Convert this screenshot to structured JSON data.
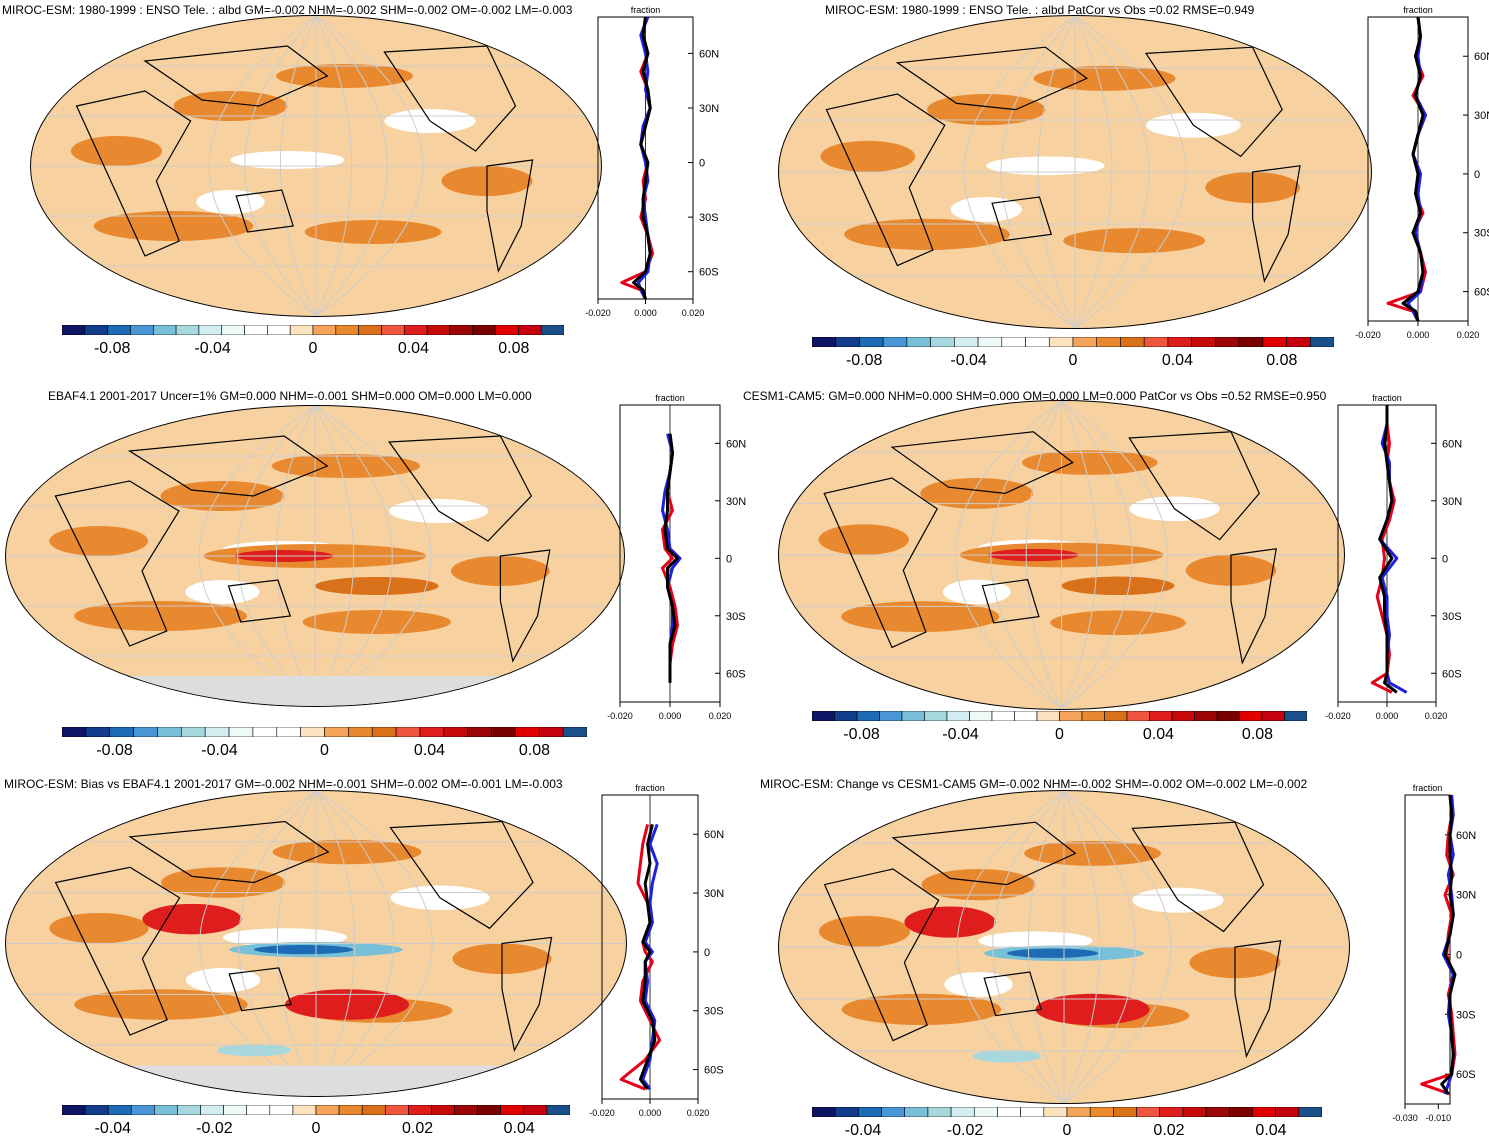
{
  "chart_data": [
    {
      "type": "heatmap",
      "title": "MIROC-ESM: 1980-1999 : ENSO Tele. : albd GM=-0.002 NHM=-0.002 SHM=-0.002 OM=-0.002 LM=-0.003",
      "colorbar": {
        "ticks": [
          "-0.08",
          "-0.04",
          "0",
          "0.04",
          "0.08"
        ],
        "range": [
          -0.1,
          0.1
        ]
      },
      "zonal_mean": {
        "label": "fraction",
        "x_ticks": [
          "-0.020",
          "0.000",
          "0.020"
        ],
        "y_ticks": [
          "60N",
          "30N",
          "0",
          "30S",
          "60S"
        ],
        "series": [
          {
            "color": "#e8001a",
            "lat": [
              80,
              70,
              60,
              50,
              40,
              30,
              20,
              10,
              0,
              -10,
              -20,
              -30,
              -40,
              -50,
              -60,
              -66,
              -70,
              -75
            ],
            "values": [
              0.0,
              -0.001,
              0.001,
              -0.002,
              0.001,
              0.002,
              0.0,
              -0.002,
              0.001,
              -0.001,
              0.0,
              -0.002,
              0.001,
              0.003,
              0.0,
              -0.01,
              -0.002,
              0.0
            ]
          },
          {
            "color": "#1f1fe0",
            "lat": [
              80,
              70,
              60,
              50,
              40,
              30,
              20,
              10,
              0,
              -10,
              -20,
              -30,
              -40,
              -50,
              -60,
              -66,
              -70,
              -75
            ],
            "values": [
              0.001,
              -0.002,
              0.0,
              0.001,
              0.0,
              0.002,
              -0.001,
              -0.002,
              0.0,
              0.001,
              -0.001,
              0.0,
              0.001,
              0.002,
              0.001,
              -0.003,
              -0.002,
              0.0
            ]
          },
          {
            "color": "#000000",
            "lat": [
              80,
              70,
              60,
              50,
              40,
              30,
              20,
              10,
              0,
              -10,
              -20,
              -30,
              -40,
              -50,
              -60,
              -66,
              -70,
              -75
            ],
            "values": [
              0.0,
              -0.001,
              0.001,
              -0.001,
              0.001,
              0.002,
              0.0,
              -0.002,
              0.001,
              0.0,
              -0.001,
              -0.001,
              0.001,
              0.002,
              0.0,
              -0.005,
              -0.001,
              0.0
            ]
          }
        ]
      }
    },
    {
      "type": "heatmap",
      "title": "MIROC-ESM: 1980-1999 : ENSO Tele. : albd PatCor vs Obs =0.02 RMSE=0.949",
      "colorbar": {
        "ticks": [
          "-0.08",
          "-0.04",
          "0",
          "0.04",
          "0.08"
        ],
        "range": [
          -0.1,
          0.1
        ]
      },
      "zonal_mean": {
        "label": "fraction",
        "x_ticks": [
          "-0.020",
          "0.000",
          "0.020"
        ],
        "y_ticks": [
          "60N",
          "30N",
          "0",
          "30S",
          "60S"
        ],
        "series": [
          {
            "color": "#e8001a",
            "lat": [
              80,
              70,
              60,
              50,
              40,
              30,
              20,
              10,
              0,
              -10,
              -20,
              -30,
              -40,
              -50,
              -60,
              -66,
              -70,
              -75
            ],
            "values": [
              0.0,
              0.001,
              -0.001,
              0.002,
              -0.002,
              0.003,
              0.0,
              -0.002,
              0.001,
              -0.001,
              0.002,
              -0.002,
              0.001,
              0.003,
              0.001,
              -0.012,
              -0.002,
              0.0
            ]
          },
          {
            "color": "#1f1fe0",
            "lat": [
              80,
              70,
              60,
              50,
              40,
              30,
              20,
              10,
              0,
              -10,
              -20,
              -30,
              -40,
              -50,
              -60,
              -66,
              -70,
              -75
            ],
            "values": [
              0.0,
              0.001,
              0.0,
              0.001,
              -0.001,
              0.003,
              0.0,
              -0.002,
              0.001,
              0.0,
              0.001,
              -0.001,
              0.001,
              0.002,
              0.001,
              -0.004,
              -0.002,
              0.0
            ]
          },
          {
            "color": "#000000",
            "lat": [
              80,
              70,
              60,
              50,
              40,
              30,
              20,
              10,
              0,
              -10,
              -20,
              -30,
              -40,
              -50,
              -60,
              -66,
              -70,
              -75
            ],
            "values": [
              0.0,
              0.001,
              -0.001,
              0.001,
              -0.001,
              0.002,
              0.0,
              -0.002,
              0.0,
              -0.001,
              0.001,
              -0.002,
              0.001,
              0.002,
              0.0,
              -0.006,
              -0.001,
              0.0
            ]
          }
        ]
      }
    },
    {
      "type": "heatmap",
      "title": "EBAF4.1 2001-2017 Uncer=1% GM=0.000 NHM=-0.001 SHM=0.000 OM=0.000 LM=0.000",
      "colorbar": {
        "ticks": [
          "-0.08",
          "-0.04",
          "0",
          "0.04",
          "0.08"
        ],
        "range": [
          -0.1,
          0.1
        ]
      },
      "zonal_mean": {
        "label": "fraction",
        "x_ticks": [
          "-0.020",
          "0.000",
          "0.020"
        ],
        "y_ticks": [
          "60N",
          "30N",
          "0",
          "30S",
          "60S"
        ],
        "series": [
          {
            "color": "#e8001a",
            "lat": [
              65,
              55,
              45,
              35,
              25,
              15,
              5,
              0,
              -5,
              -15,
              -25,
              -35,
              -45,
              -55,
              -65
            ],
            "values": [
              0.0,
              0.001,
              0.0,
              -0.001,
              0.001,
              -0.003,
              -0.002,
              0.001,
              -0.003,
              0.0,
              0.002,
              0.003,
              0.001,
              0.0,
              0.0
            ]
          },
          {
            "color": "#1f1fe0",
            "lat": [
              65,
              55,
              45,
              35,
              25,
              15,
              5,
              0,
              -5,
              -15,
              -25,
              -35,
              -45,
              -55,
              -65
            ],
            "values": [
              -0.001,
              0.001,
              0.0,
              -0.002,
              -0.003,
              -0.001,
              0.0,
              0.004,
              0.001,
              -0.001,
              0.001,
              0.001,
              0.0,
              0.0,
              0.0
            ]
          },
          {
            "color": "#000000",
            "lat": [
              65,
              55,
              45,
              35,
              25,
              15,
              5,
              0,
              -5,
              -15,
              -25,
              -35,
              -45,
              -55,
              -65
            ],
            "values": [
              0.0,
              0.001,
              0.0,
              -0.001,
              -0.001,
              -0.002,
              -0.001,
              0.003,
              -0.001,
              -0.001,
              0.001,
              0.002,
              0.0,
              0.0,
              0.0
            ]
          }
        ]
      }
    },
    {
      "type": "heatmap",
      "title": "CESM1-CAM5: GM=0.000 NHM=0.000 SHM=0.000 OM=0.000 LM=0.000 PatCor vs Obs =0.52 RMSE=0.950",
      "colorbar": {
        "ticks": [
          "-0.08",
          "-0.04",
          "0",
          "0.04",
          "0.08"
        ],
        "range": [
          -0.1,
          0.1
        ]
      },
      "zonal_mean": {
        "label": "fraction",
        "x_ticks": [
          "-0.020",
          "0.000",
          "0.020"
        ],
        "y_ticks": [
          "60N",
          "30N",
          "0",
          "30S",
          "60S"
        ],
        "series": [
          {
            "color": "#e8001a",
            "lat": [
              80,
              70,
              60,
              50,
              40,
              30,
              20,
              10,
              0,
              -10,
              -20,
              -30,
              -40,
              -50,
              -60,
              -65,
              -70
            ],
            "values": [
              0.0,
              0.0,
              0.001,
              0.0,
              0.001,
              0.003,
              0.001,
              -0.002,
              -0.001,
              -0.002,
              -0.004,
              -0.002,
              0.0,
              0.001,
              0.0,
              -0.006,
              0.002
            ]
          },
          {
            "color": "#1f1fe0",
            "lat": [
              80,
              70,
              60,
              50,
              40,
              30,
              20,
              10,
              0,
              -10,
              -20,
              -30,
              -40,
              -50,
              -60,
              -65,
              -70
            ],
            "values": [
              0.0,
              0.0,
              -0.002,
              0.001,
              0.001,
              0.002,
              0.0,
              -0.003,
              0.004,
              -0.002,
              0.0,
              0.0,
              0.001,
              0.0,
              0.0,
              0.001,
              0.008
            ]
          },
          {
            "color": "#000000",
            "lat": [
              80,
              70,
              60,
              50,
              40,
              30,
              20,
              10,
              0,
              -10,
              -20,
              -30,
              -40,
              -50,
              -60,
              -65,
              -70
            ],
            "values": [
              0.0,
              0.0,
              -0.001,
              0.0,
              0.001,
              0.002,
              0.0,
              -0.003,
              0.002,
              -0.003,
              -0.001,
              -0.001,
              0.0,
              0.0,
              0.0,
              -0.001,
              0.004
            ]
          }
        ]
      }
    },
    {
      "type": "heatmap",
      "title": "MIROC-ESM: Bias vs EBAF4.1 2001-2017 GM=-0.002 NHM=-0.001 SHM=-0.002 OM=-0.001 LM=-0.003",
      "colorbar": {
        "ticks": [
          "-0.04",
          "-0.02",
          "0",
          "0.02",
          "0.04"
        ],
        "range": [
          -0.05,
          0.05
        ]
      },
      "zonal_mean": {
        "label": "fraction",
        "x_ticks": [
          "-0.020",
          "0.000",
          "0.020"
        ],
        "y_ticks": [
          "60N",
          "30N",
          "0",
          "30S",
          "60S"
        ],
        "series": [
          {
            "color": "#e8001a",
            "lat": [
              65,
              55,
              45,
              35,
              25,
              15,
              5,
              0,
              -5,
              -15,
              -25,
              -35,
              -45,
              -55,
              -65,
              -70
            ],
            "values": [
              -0.001,
              -0.003,
              -0.004,
              -0.005,
              -0.001,
              0.0,
              -0.003,
              -0.002,
              0.001,
              -0.003,
              -0.004,
              0.0,
              0.004,
              -0.002,
              -0.012,
              -0.002
            ]
          },
          {
            "color": "#1f1fe0",
            "lat": [
              65,
              55,
              45,
              35,
              25,
              15,
              5,
              0,
              -5,
              -15,
              -25,
              -35,
              -45,
              -55,
              -65,
              -70
            ],
            "values": [
              0.003,
              0.0,
              0.003,
              0.001,
              0.0,
              0.001,
              -0.002,
              0.001,
              -0.002,
              -0.001,
              -0.002,
              0.002,
              0.001,
              0.0,
              -0.003,
              0.0
            ]
          },
          {
            "color": "#000000",
            "lat": [
              65,
              55,
              45,
              35,
              25,
              15,
              5,
              0,
              -5,
              -15,
              -25,
              -35,
              -45,
              -55,
              -65,
              -70
            ],
            "values": [
              0.001,
              -0.001,
              0.0,
              -0.002,
              -0.001,
              0.0,
              -0.003,
              0.0,
              -0.002,
              -0.002,
              -0.003,
              0.001,
              0.002,
              -0.001,
              -0.004,
              -0.001
            ]
          }
        ]
      }
    },
    {
      "type": "heatmap",
      "title": "MIROC-ESM: Change vs CESM1-CAM5 GM=-0.002 NHM=-0.002 SHM=-0.002 OM=-0.002 LM=-0.002",
      "colorbar": {
        "ticks": [
          "-0.04",
          "-0.02",
          "0",
          "0.02",
          "0.04"
        ],
        "range": [
          -0.05,
          0.05
        ]
      },
      "zonal_mean": {
        "label": "fraction",
        "x_ticks": [
          "-0.030",
          "-0.010"
        ],
        "y_ticks": [
          "60N",
          "30N",
          "0",
          "30S",
          "60S"
        ],
        "series": [
          {
            "color": "#e8001a",
            "lat": [
              80,
              70,
              60,
              50,
              40,
              30,
              20,
              10,
              0,
              -10,
              -20,
              -30,
              -40,
              -50,
              -60,
              -65,
              -70
            ],
            "values": [
              -0.003,
              -0.002,
              -0.004,
              -0.005,
              -0.001,
              -0.006,
              -0.002,
              -0.004,
              -0.005,
              -0.001,
              -0.004,
              -0.002,
              -0.001,
              0.0,
              -0.002,
              -0.02,
              -0.003
            ]
          },
          {
            "color": "#1f1fe0",
            "lat": [
              80,
              70,
              60,
              50,
              40,
              30,
              20,
              10,
              0,
              -10,
              -20,
              -30,
              -40,
              -50,
              -60,
              -65,
              -70
            ],
            "values": [
              -0.002,
              -0.001,
              -0.003,
              -0.001,
              -0.004,
              -0.002,
              -0.001,
              -0.003,
              -0.007,
              -0.001,
              -0.003,
              -0.004,
              -0.002,
              -0.001,
              -0.002,
              -0.004,
              -0.006
            ]
          },
          {
            "color": "#000000",
            "lat": [
              80,
              70,
              60,
              50,
              40,
              30,
              20,
              10,
              0,
              -10,
              -20,
              -30,
              -40,
              -50,
              -60,
              -65,
              -70
            ],
            "values": [
              -0.003,
              -0.002,
              -0.003,
              -0.003,
              -0.002,
              -0.003,
              -0.001,
              -0.003,
              -0.006,
              0.0,
              -0.003,
              -0.003,
              -0.002,
              -0.001,
              -0.002,
              -0.008,
              -0.004
            ]
          }
        ]
      }
    }
  ],
  "palette": [
    "#0d1564",
    "#123c8c",
    "#1d6bb5",
    "#4a95d6",
    "#78bfd8",
    "#a7d8de",
    "#d2eef0",
    "#eefaf8",
    "#ffffff",
    "#ffffff",
    "#fbe3c0",
    "#f4a45a",
    "#e9892f",
    "#d9701a",
    "#f0553f",
    "#e01d1d",
    "#c60a0a",
    "#9c0505",
    "#7a0000",
    "#e00000",
    "#c70010",
    "#1b4f8a"
  ]
}
